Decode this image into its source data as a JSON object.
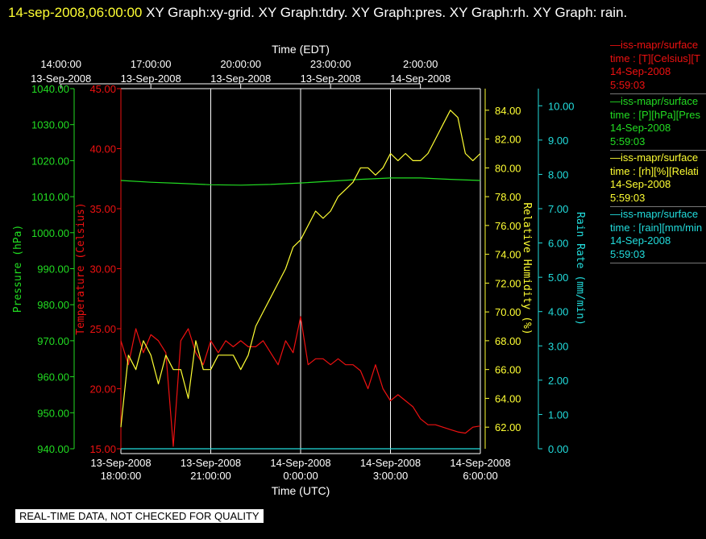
{
  "header": {
    "timestamp": "14-sep-2008,06:00:00",
    "graphs": " XY Graph:xy-grid.  XY Graph:tdry.  XY Graph:pres.  XY Graph:rh.  XY Graph: rain."
  },
  "disclaimer": "REAL-TIME DATA, NOT CHECKED FOR QUALITY",
  "chart_data": {
    "type": "line",
    "top_axis_title": "Time (EDT)",
    "bottom_axis_title": "Time (UTC)",
    "x_range_utc": [
      "2008-09-13 18:00",
      "2008-09-14 06:00"
    ],
    "top_ticks": [
      {
        "time": "14:00:00",
        "date": "13-Sep-2008"
      },
      {
        "time": "17:00:00",
        "date": "13-Sep-2008"
      },
      {
        "time": "20:00:00",
        "date": "13-Sep-2008"
      },
      {
        "time": "23:00:00",
        "date": "13-Sep-2008"
      },
      {
        "time": "2:00:00",
        "date": "14-Sep-2008"
      }
    ],
    "bottom_ticks": [
      {
        "date": "13-Sep-2008",
        "time": "18:00:00"
      },
      {
        "date": "13-Sep-2008",
        "time": "21:00:00"
      },
      {
        "date": "14-Sep-2008",
        "time": "0:00:00"
      },
      {
        "date": "14-Sep-2008",
        "time": "3:00:00"
      },
      {
        "date": "14-Sep-2008",
        "time": "6:00:00"
      }
    ],
    "axes": {
      "pressure": {
        "label": "Pressure (hPa)",
        "range": [
          940,
          1040
        ],
        "ticks": [
          "940.00",
          "950.00",
          "960.00",
          "970.00",
          "980.00",
          "990.00",
          "1000.00",
          "1010.00",
          "1020.00",
          "1030.00",
          "1040.00"
        ],
        "color": "#22dd22"
      },
      "temperature": {
        "label": "Temperature (Celsius)",
        "range": [
          15,
          45
        ],
        "ticks": [
          "15.00",
          "20.00",
          "25.00",
          "30.00",
          "35.00",
          "40.00",
          "45.00"
        ],
        "color": "#ee1111"
      },
      "humidity": {
        "label": "Relative Humidity (%)",
        "range": [
          60.5,
          85.5
        ],
        "ticks": [
          "62.00",
          "64.00",
          "66.00",
          "68.00",
          "70.00",
          "72.00",
          "74.00",
          "76.00",
          "78.00",
          "80.00",
          "82.00",
          "84.00"
        ],
        "color": "#ffff33"
      },
      "rain": {
        "label": "Rain Rate (mm/min)",
        "range": [
          0,
          10.5
        ],
        "ticks": [
          "0.00",
          "1.00",
          "2.00",
          "3.00",
          "4.00",
          "5.00",
          "6.00",
          "7.00",
          "8.00",
          "9.00",
          "10.00"
        ],
        "color": "#22dddd"
      }
    },
    "series": [
      {
        "axis": "temperature",
        "x": [
          0,
          0.25,
          0.5,
          0.75,
          1,
          1.25,
          1.5,
          1.75,
          2,
          2.25,
          2.5,
          2.75,
          3,
          3.25,
          3.5,
          3.75,
          4,
          4.25,
          4.5,
          4.75,
          5,
          5.25,
          5.5,
          5.75,
          6,
          6.25,
          6.5,
          6.75,
          7,
          7.25,
          7.5,
          7.75,
          8,
          8.25,
          8.5,
          8.75,
          9,
          9.25,
          9.5,
          9.75,
          10,
          10.25,
          10.5,
          10.75,
          11,
          11.25,
          11.5,
          11.75,
          12
        ],
        "values": [
          24,
          22,
          25,
          23,
          24.5,
          24,
          23,
          15.2,
          24,
          25,
          23,
          22,
          24,
          23,
          24,
          23.5,
          24,
          23.5,
          23.5,
          24,
          23,
          22,
          24,
          23,
          26,
          22,
          22.5,
          22.5,
          22,
          22.5,
          22,
          22,
          21.5,
          20,
          22,
          20,
          19,
          19.5,
          19,
          18.5,
          17.5,
          17,
          17,
          16.8,
          16.6,
          16.4,
          16.3,
          16.8,
          16.9
        ]
      },
      {
        "axis": "pressure",
        "x": [
          0,
          1,
          2,
          3,
          4,
          5,
          6,
          7,
          8,
          9,
          10,
          11,
          12
        ],
        "values": [
          1014.5,
          1014,
          1013.7,
          1013.3,
          1013.2,
          1013.4,
          1013.8,
          1014.3,
          1014.8,
          1015.2,
          1015.2,
          1014.8,
          1014.5
        ]
      },
      {
        "axis": "humidity",
        "x": [
          0,
          0.25,
          0.5,
          0.75,
          1,
          1.25,
          1.5,
          1.75,
          2,
          2.25,
          2.5,
          2.75,
          3,
          3.25,
          3.5,
          3.75,
          4,
          4.25,
          4.5,
          4.75,
          5,
          5.25,
          5.5,
          5.75,
          6,
          6.25,
          6.5,
          6.75,
          7,
          7.25,
          7.5,
          7.75,
          8,
          8.25,
          8.5,
          8.75,
          9,
          9.25,
          9.5,
          9.75,
          10,
          10.25,
          10.5,
          10.75,
          11,
          11.25,
          11.5,
          11.75,
          12
        ],
        "values": [
          62,
          67,
          66,
          68,
          67,
          65,
          67,
          66,
          66,
          64,
          68,
          66,
          66,
          67,
          67,
          67,
          66,
          67,
          69,
          70,
          71,
          72,
          73,
          74.5,
          75,
          76,
          77,
          76.5,
          77,
          78,
          78.5,
          79,
          80,
          80,
          79.5,
          80,
          81,
          80.5,
          81,
          80.5,
          80.5,
          81,
          82,
          83,
          84,
          83.5,
          81,
          80.5,
          81
        ]
      },
      {
        "axis": "rain",
        "x": [
          0,
          12
        ],
        "values": [
          0,
          0
        ]
      }
    ]
  },
  "legend": [
    {
      "line1": "—iss-mapr/surface",
      "line2": "time : [T][Celsius][T",
      "date": "14-Sep-2008",
      "time": "5:59:03",
      "color": "#ee1111"
    },
    {
      "line1": "—iss-mapr/surface",
      "line2": "time : [P][hPa][Pres",
      "date": "14-Sep-2008",
      "time": "5:59:03",
      "color": "#22dd22"
    },
    {
      "line1": "—iss-mapr/surface",
      "line2": "time : [rh][%][Relati",
      "date": "14-Sep-2008",
      "time": "5:59:03",
      "color": "#ffff33"
    },
    {
      "line1": "—iss-mapr/surface",
      "line2": "time : [rain][mm/min",
      "date": "14-Sep-2008",
      "time": "5:59:03",
      "color": "#22dddd"
    }
  ]
}
